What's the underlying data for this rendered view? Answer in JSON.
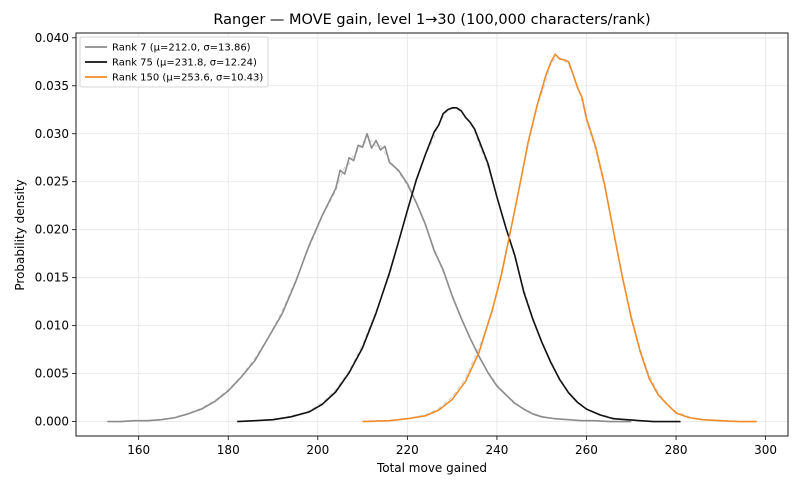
{
  "chart_data": {
    "type": "line",
    "title": "Ranger — MOVE gain, level 1→30 (100,000 characters/rank)",
    "xlabel": "Total move gained",
    "ylabel": "Probability density",
    "xlim": [
      146,
      305
    ],
    "ylim": [
      -0.0015,
      0.0405
    ],
    "xticks": [
      160,
      180,
      200,
      220,
      240,
      260,
      280,
      300
    ],
    "xtick_labels": [
      "160",
      "180",
      "200",
      "220",
      "240",
      "260",
      "280",
      "300"
    ],
    "yticks": [
      0.0,
      0.005,
      0.01,
      0.015,
      0.02,
      0.025,
      0.03,
      0.035,
      0.04
    ],
    "ytick_labels": [
      "0.000",
      "0.005",
      "0.010",
      "0.015",
      "0.020",
      "0.025",
      "0.030",
      "0.035",
      "0.040"
    ],
    "grid": true,
    "legend_position": "top-left",
    "series": [
      {
        "name": "Rank 7 (μ=212.0, σ=13.86)",
        "color": "#8c8c8c",
        "x": [
          153,
          156,
          159,
          162,
          165,
          168,
          171,
          174,
          177,
          180,
          183,
          186,
          189,
          192,
          195,
          198,
          201,
          204,
          205,
          206,
          207,
          208,
          209,
          210,
          211,
          212,
          213,
          214,
          215,
          216,
          218,
          220,
          222,
          224,
          226,
          228,
          230,
          232,
          234,
          236,
          238,
          240,
          242,
          244,
          246,
          248,
          250,
          253,
          256,
          259,
          262,
          265,
          268,
          270
        ],
        "y": [
          0.0,
          0.0,
          0.0001,
          0.0001,
          0.0002,
          0.0004,
          0.0008,
          0.0013,
          0.0021,
          0.0032,
          0.0047,
          0.0064,
          0.0088,
          0.0112,
          0.0145,
          0.0183,
          0.0215,
          0.0243,
          0.0262,
          0.0258,
          0.0275,
          0.0272,
          0.0288,
          0.0286,
          0.03,
          0.0285,
          0.0293,
          0.0283,
          0.0287,
          0.027,
          0.0262,
          0.0248,
          0.0228,
          0.0206,
          0.0178,
          0.0158,
          0.0131,
          0.0108,
          0.0087,
          0.0068,
          0.0051,
          0.0037,
          0.0028,
          0.0019,
          0.0013,
          0.0008,
          0.0005,
          0.0003,
          0.0002,
          0.0001,
          0.0001,
          0.0,
          0.0,
          0.0
        ]
      },
      {
        "name": "Rank 75 (μ=231.8, σ=12.24)",
        "color": "#111111",
        "x": [
          182,
          186,
          190,
          194,
          198,
          201,
          204,
          207,
          210,
          213,
          216,
          218,
          220,
          222,
          224,
          226,
          227,
          228,
          229,
          230,
          231,
          232,
          233,
          234,
          235,
          236,
          238,
          240,
          242,
          244,
          246,
          248,
          250,
          252,
          254,
          256,
          258,
          260,
          263,
          266,
          269,
          272,
          275,
          278,
          281
        ],
        "y": [
          0.0,
          0.0001,
          0.0002,
          0.0005,
          0.001,
          0.0018,
          0.0031,
          0.0051,
          0.0077,
          0.0113,
          0.0155,
          0.0187,
          0.022,
          0.0252,
          0.0278,
          0.0302,
          0.0309,
          0.0321,
          0.0325,
          0.0327,
          0.0327,
          0.0324,
          0.0317,
          0.0312,
          0.0305,
          0.0293,
          0.0269,
          0.0234,
          0.0202,
          0.0173,
          0.0135,
          0.0107,
          0.0083,
          0.0062,
          0.0044,
          0.003,
          0.002,
          0.0013,
          0.0007,
          0.0003,
          0.0002,
          0.0001,
          0.0,
          0.0,
          0.0
        ]
      },
      {
        "name": "Rank 150 (μ=253.6, σ=10.43)",
        "color": "#f28c28",
        "x": [
          210,
          216,
          220,
          224,
          227,
          230,
          233,
          236,
          239,
          241,
          243,
          245,
          247,
          249,
          251,
          252,
          253,
          254,
          255,
          256,
          257,
          258,
          259,
          260,
          262,
          264,
          266,
          268,
          270,
          272,
          274,
          276,
          278,
          280,
          283,
          286,
          290,
          294,
          298
        ],
        "y": [
          0.0,
          0.0001,
          0.0003,
          0.0006,
          0.0012,
          0.0023,
          0.0042,
          0.0072,
          0.0117,
          0.0153,
          0.0198,
          0.0244,
          0.0292,
          0.033,
          0.0362,
          0.0374,
          0.0383,
          0.0378,
          0.0377,
          0.0375,
          0.0362,
          0.0348,
          0.0338,
          0.0316,
          0.0287,
          0.0248,
          0.0199,
          0.0151,
          0.0108,
          0.0073,
          0.0045,
          0.0028,
          0.0018,
          0.0009,
          0.0004,
          0.0002,
          0.0001,
          0.0,
          0.0
        ]
      }
    ]
  }
}
